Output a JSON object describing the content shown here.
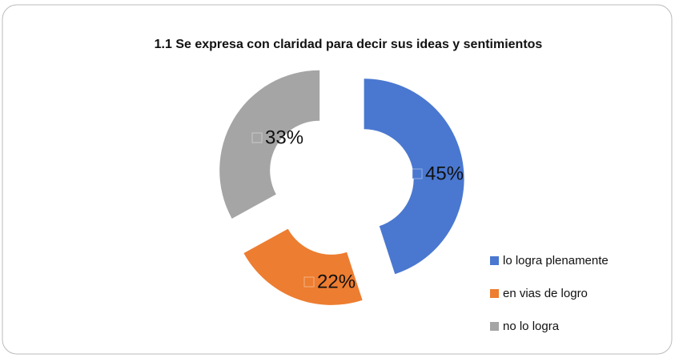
{
  "chart_data": {
    "type": "donut",
    "title": "1.1 Se expresa con claridad para decir sus ideas y sentimientos",
    "categories": [
      "lo logra plenamente",
      "en vias de logro",
      "no lo logra"
    ],
    "values": [
      45,
      22,
      33
    ],
    "value_labels": [
      "45%",
      "22%",
      "33%"
    ],
    "colors": [
      "#4a78d0",
      "#ed7d31",
      "#a5a5a5"
    ],
    "legend": "right"
  }
}
